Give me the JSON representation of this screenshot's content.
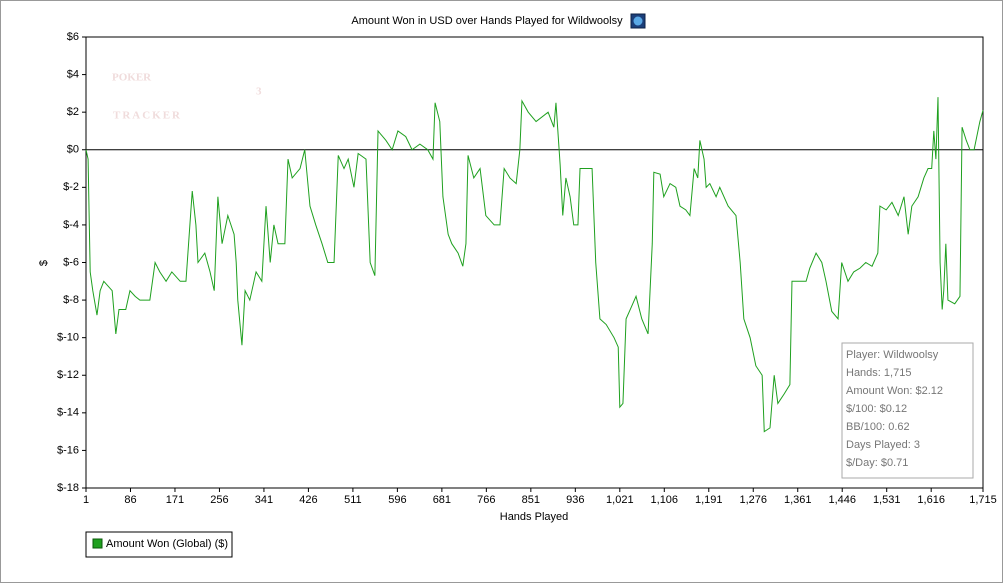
{
  "chart_data": {
    "type": "line",
    "title": "Amount Won in USD over Hands Played for Wildwoolsy",
    "x_label": "Hands Played",
    "y_label": "$",
    "watermark": {
      "line1": "POKER",
      "line2": "TRACKER",
      "badge": "3"
    },
    "xlim": [
      1,
      1715
    ],
    "ylim": [
      -18,
      6
    ],
    "xticks": [
      1,
      86,
      171,
      256,
      341,
      426,
      511,
      596,
      681,
      766,
      851,
      936,
      {
        "value": 1021,
        "label": "1,021"
      },
      {
        "value": 1106,
        "label": "1,106"
      },
      {
        "value": 1191,
        "label": "1,191"
      },
      {
        "value": 1276,
        "label": "1,276"
      },
      {
        "value": 1361,
        "label": "1,361"
      },
      {
        "value": 1446,
        "label": "1,446"
      },
      {
        "value": 1531,
        "label": "1,531"
      },
      {
        "value": 1616,
        "label": "1,616"
      },
      {
        "value": 1715,
        "label": "1,715"
      }
    ],
    "yticks": [
      {
        "value": -18,
        "label": "$-18"
      },
      {
        "value": -16,
        "label": "$-16"
      },
      {
        "value": -14,
        "label": "$-14"
      },
      {
        "value": -12,
        "label": "$-12"
      },
      {
        "value": -10,
        "label": "$-10"
      },
      {
        "value": -8,
        "label": "$-8"
      },
      {
        "value": -6,
        "label": "$-6"
      },
      {
        "value": -4,
        "label": "$-4"
      },
      {
        "value": -2,
        "label": "$-2"
      },
      {
        "value": 0,
        "label": "$0"
      },
      {
        "value": 2,
        "label": "$2"
      },
      {
        "value": 4,
        "label": "$4"
      },
      {
        "value": 6,
        "label": "$6"
      }
    ],
    "zero_line": true,
    "series": [
      {
        "name": "Amount Won (Global) ($)",
        "color": "#1fa01f",
        "x": [
          1,
          5,
          9,
          14,
          22,
          28,
          35,
          51,
          58,
          64,
          77,
          85,
          95,
          104,
          123,
          133,
          142,
          154,
          165,
          181,
          192,
          204,
          211,
          215,
          228,
          238,
          246,
          253,
          261,
          272,
          284,
          288,
          291,
          299,
          305,
          314,
          326,
          337,
          345,
          353,
          360,
          368,
          381,
          387,
          395,
          410,
          419,
          429,
          440,
          452,
          463,
          475,
          483,
          494,
          502,
          513,
          521,
          536,
          544,
          553,
          559,
          574,
          586,
          597,
          612,
          624,
          639,
          654,
          664,
          668,
          677,
          683,
          693,
          700,
          712,
          721,
          727,
          731,
          742,
          754,
          765,
          781,
          792,
          800,
          811,
          823,
          830,
          834,
          846,
          861,
          884,
          895,
          899,
          907,
          912,
          918,
          926,
          933,
          941,
          945,
          956,
          968,
          975,
          983,
          995,
          1010,
          1018,
          1021,
          1027,
          1033,
          1041,
          1052,
          1063,
          1075,
          1083,
          1086,
          1098,
          1105,
          1117,
          1128,
          1136,
          1147,
          1155,
          1163,
          1170,
          1174,
          1182,
          1186,
          1193,
          1205,
          1212,
          1228,
          1243,
          1251,
          1258,
          1270,
          1281,
          1293,
          1297,
          1308,
          1316,
          1323,
          1335,
          1346,
          1350,
          1365,
          1377,
          1384,
          1396,
          1407,
          1415,
          1426,
          1438,
          1445,
          1457,
          1468,
          1480,
          1491,
          1503,
          1514,
          1518,
          1530,
          1541,
          1553,
          1564,
          1572,
          1579,
          1591,
          1602,
          1610,
          1617,
          1621,
          1625,
          1629,
          1633,
          1637,
          1640,
          1644,
          1648,
          1661,
          1671,
          1675,
          1683,
          1690,
          1698,
          1709,
          1715
        ],
        "values": [
          0,
          -0.5,
          -6.5,
          -7.5,
          -8.8,
          -7.5,
          -7,
          -7.5,
          -9.8,
          -8.5,
          -8.5,
          -7.5,
          -7.8,
          -8,
          -8,
          -6,
          -6.5,
          -7,
          -6.5,
          -7,
          -7,
          -2.2,
          -4,
          -6,
          -5.5,
          -6.5,
          -7.5,
          -2.5,
          -5,
          -3.5,
          -4.5,
          -6,
          -8,
          -10.4,
          -7.5,
          -8,
          -6.5,
          -7,
          -3,
          -6,
          -4,
          -5,
          -5,
          -0.5,
          -1.5,
          -1,
          0,
          -3,
          -4,
          -5,
          -6,
          -6,
          -0.3,
          -1,
          -0.5,
          -2,
          -0.2,
          -0.5,
          -6,
          -6.7,
          1,
          0.5,
          0,
          1,
          0.7,
          0,
          0.3,
          0,
          -0.5,
          2.5,
          1.5,
          -2.5,
          -4.5,
          -5,
          -5.5,
          -6.2,
          -5,
          -0.3,
          -1.5,
          -1,
          -3.5,
          -4,
          -4,
          -1,
          -1.5,
          -1.8,
          0,
          2.6,
          2,
          1.5,
          2,
          1.2,
          2.5,
          -0.8,
          -3.5,
          -1.5,
          -2.5,
          -4,
          -4,
          -1,
          -1,
          -1,
          -6,
          -9,
          -9.3,
          -10,
          -10.5,
          -13.7,
          -13.5,
          -9,
          -8.5,
          -7.8,
          -9,
          -9.8,
          -5,
          -1.2,
          -1.3,
          -2.5,
          -1.8,
          -2,
          -3,
          -3.2,
          -3.5,
          -1,
          -1.5,
          0.5,
          -0.5,
          -2,
          -1.8,
          -2.5,
          -2,
          -3,
          -3.5,
          -6,
          -9,
          -10,
          -11.5,
          -12,
          -15,
          -14.8,
          -12,
          -13.5,
          -13,
          -12.5,
          -7,
          -7,
          -7,
          -6.3,
          -5.5,
          -6,
          -7,
          -8.6,
          -9,
          -6,
          -7,
          -6.5,
          -6.3,
          -6,
          -6.2,
          -5.5,
          -3,
          -3.2,
          -2.8,
          -3.5,
          -2.5,
          -4.5,
          -3,
          -2.5,
          -1.5,
          -1,
          -1,
          1,
          -0.5,
          2.8,
          -6,
          -8.5,
          -7.5,
          -5,
          -8,
          -8.2,
          -7.8,
          1.2,
          0.5,
          0,
          0,
          1.5,
          2.1
        ]
      }
    ],
    "info_box": [
      "Player: Wildwoolsy",
      "Hands: 1,715",
      "Amount Won: $2.12",
      "$/100: $0.12",
      "BB/100: 0.62",
      "Days Played: 3",
      "$/Day: $0.71"
    ]
  }
}
